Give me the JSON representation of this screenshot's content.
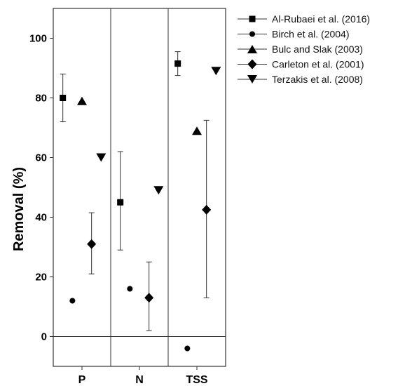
{
  "chart_data": {
    "type": "scatter",
    "categories": [
      "P",
      "N",
      "TSS"
    ],
    "ylabel": "Removal (%)",
    "ylim": [
      -10,
      110
    ],
    "yticks": [
      0,
      20,
      40,
      60,
      80,
      100
    ],
    "zero_line": true,
    "grid": false,
    "legend_position": "top-right, outside plot",
    "series": [
      {
        "name": "Al-Rubaei et al. (2016)",
        "marker": "square",
        "points": [
          {
            "category": "P",
            "y": 80,
            "err_low": 72,
            "err_high": 88
          },
          {
            "category": "N",
            "y": 45,
            "err_low": 29,
            "err_high": 62
          },
          {
            "category": "TSS",
            "y": 91.5,
            "err_low": 87.5,
            "err_high": 95.5
          }
        ]
      },
      {
        "name": "Birch et al. (2004)",
        "marker": "circle",
        "points": [
          {
            "category": "P",
            "y": 12
          },
          {
            "category": "N",
            "y": 16
          },
          {
            "category": "TSS",
            "y": -4
          }
        ]
      },
      {
        "name": "Bulc and Slak (2003)",
        "marker": "triangle-up",
        "points": [
          {
            "category": "P",
            "y": 79
          },
          {
            "category": "TSS",
            "y": 69
          }
        ]
      },
      {
        "name": "Carleton et al. (2001)",
        "marker": "diamond",
        "points": [
          {
            "category": "P",
            "y": 31,
            "err_low": 21,
            "err_high": 41.5
          },
          {
            "category": "N",
            "y": 13,
            "err_low": 2,
            "err_high": 25
          },
          {
            "category": "TSS",
            "y": 42.5,
            "err_low": 13,
            "err_high": 72.5
          }
        ]
      },
      {
        "name": "Terzakis et al. (2008)",
        "marker": "triangle-down",
        "points": [
          {
            "category": "P",
            "y": 60
          },
          {
            "category": "N",
            "y": 49
          },
          {
            "category": "TSS",
            "y": 89
          }
        ]
      }
    ]
  }
}
